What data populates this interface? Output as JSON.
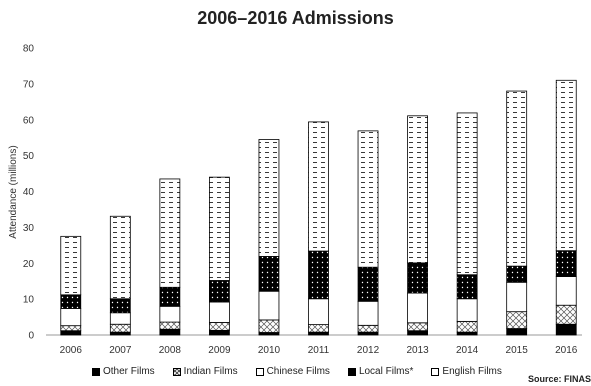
{
  "chart_data": {
    "type": "bar",
    "stacked": true,
    "title": "2006–2016 Admissions",
    "xlabel": "",
    "ylabel": "Attendance (millions)",
    "ylim": [
      0,
      80
    ],
    "yticks": [
      0,
      10,
      20,
      30,
      40,
      50,
      60,
      70,
      80
    ],
    "grid": false,
    "legend_position": "bottom",
    "categories": [
      "2006",
      "2007",
      "2008",
      "2009",
      "2010",
      "2011",
      "2012",
      "2013",
      "2014",
      "2015",
      "2016"
    ],
    "series": [
      {
        "name": "Other Films",
        "pattern": "solid-black",
        "values": [
          1.2,
          0.8,
          1.6,
          1.3,
          0.7,
          0.8,
          0.8,
          1.2,
          0.8,
          1.8,
          3.0
        ]
      },
      {
        "name": "Indian Films",
        "pattern": "cross-hatch",
        "values": [
          1.4,
          2.2,
          2.0,
          2.2,
          3.5,
          2.1,
          1.9,
          2.2,
          3.0,
          4.7,
          5.3
        ]
      },
      {
        "name": "Chinese Films",
        "pattern": "white",
        "values": [
          4.8,
          3.2,
          4.4,
          5.7,
          8.0,
          7.2,
          6.7,
          8.3,
          6.3,
          8.2,
          8.0
        ]
      },
      {
        "name": "Local Films*",
        "pattern": "black-dotted",
        "values": [
          3.8,
          3.9,
          5.3,
          6.0,
          9.7,
          13.3,
          9.5,
          8.4,
          6.7,
          4.5,
          7.2
        ]
      },
      {
        "name": "English Films",
        "pattern": "white-dashed",
        "values": [
          16.3,
          23.0,
          30.2,
          28.8,
          32.6,
          36.0,
          38.0,
          41.0,
          45.1,
          48.8,
          47.5
        ]
      }
    ],
    "source": "Source: FINAS"
  }
}
